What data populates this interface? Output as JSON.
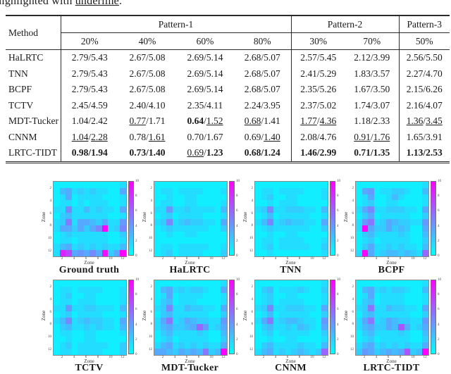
{
  "intro_text": {
    "prefix": "highlighted with ",
    "underlined": "underline",
    "suffix": "."
  },
  "table": {
    "method_header": "Method",
    "groups": [
      {
        "label": "Pattern-1",
        "span": 4
      },
      {
        "label": "Pattern-2",
        "span": 2
      },
      {
        "label": "Pattern-3",
        "span": 1
      }
    ],
    "sub_headers": [
      "20%",
      "40%",
      "60%",
      "80%",
      "30%",
      "70%",
      "50%"
    ],
    "rows": [
      {
        "method": "HaLRTC",
        "cells": [
          [
            "2.79",
            "n",
            "5.43",
            "n"
          ],
          [
            "2.67",
            "n",
            "5.08",
            "n"
          ],
          [
            "2.69",
            "n",
            "5.14",
            "n"
          ],
          [
            "2.68",
            "n",
            "5.07",
            "n"
          ],
          [
            "2.57",
            "n",
            "5.45",
            "n"
          ],
          [
            "2.12",
            "n",
            "3.99",
            "n"
          ],
          [
            "2.56",
            "n",
            "5.50",
            "n"
          ]
        ]
      },
      {
        "method": "TNN",
        "cells": [
          [
            "2.79",
            "n",
            "5.43",
            "n"
          ],
          [
            "2.67",
            "n",
            "5.08",
            "n"
          ],
          [
            "2.69",
            "n",
            "5.14",
            "n"
          ],
          [
            "2.68",
            "n",
            "5.07",
            "n"
          ],
          [
            "2.41",
            "n",
            "5.29",
            "n"
          ],
          [
            "1.83",
            "n",
            "3.57",
            "n"
          ],
          [
            "2.27",
            "n",
            "4.70",
            "n"
          ]
        ]
      },
      {
        "method": "BCPF",
        "cells": [
          [
            "2.79",
            "n",
            "5.43",
            "n"
          ],
          [
            "2.67",
            "n",
            "5.08",
            "n"
          ],
          [
            "2.69",
            "n",
            "5.14",
            "n"
          ],
          [
            "2.68",
            "n",
            "5.07",
            "n"
          ],
          [
            "2.35",
            "n",
            "5.26",
            "n"
          ],
          [
            "1.67",
            "n",
            "3.50",
            "n"
          ],
          [
            "2.15",
            "n",
            "6.26",
            "n"
          ]
        ]
      },
      {
        "method": "TCTV",
        "cells": [
          [
            "2.45",
            "n",
            "4.59",
            "n"
          ],
          [
            "2.40",
            "n",
            "4.10",
            "n"
          ],
          [
            "2.35",
            "n",
            "4.11",
            "n"
          ],
          [
            "2.24",
            "n",
            "3.95",
            "n"
          ],
          [
            "2.37",
            "n",
            "5.02",
            "n"
          ],
          [
            "1.74",
            "n",
            "3.07",
            "n"
          ],
          [
            "2.16",
            "n",
            "4.07",
            "n"
          ]
        ]
      },
      {
        "method": "MDT-Tucker",
        "cells": [
          [
            "1.04",
            "n",
            "2.42",
            "n"
          ],
          [
            "0.77",
            "u",
            "1.71",
            "n"
          ],
          [
            "0.64",
            "b",
            "1.52",
            "u"
          ],
          [
            "0.68",
            "u",
            "1.41",
            "n"
          ],
          [
            "1.77",
            "u",
            "4.36",
            "u"
          ],
          [
            "1.18",
            "n",
            "2.33",
            "n"
          ],
          [
            "1.36",
            "u",
            "3.45",
            "u"
          ]
        ]
      },
      {
        "method": "CNNM",
        "cells": [
          [
            "1.04",
            "u",
            "2.28",
            "u"
          ],
          [
            "0.78",
            "n",
            "1.61",
            "u"
          ],
          [
            "0.70",
            "n",
            "1.67",
            "n"
          ],
          [
            "0.69",
            "n",
            "1.40",
            "u"
          ],
          [
            "2.08",
            "n",
            "4.76",
            "n"
          ],
          [
            "0.91",
            "u",
            "1.76",
            "u"
          ],
          [
            "1.65",
            "n",
            "3.91",
            "n"
          ]
        ]
      },
      {
        "method": "LRTC-TIDT",
        "cells": [
          [
            "0.98",
            "b",
            "1.94",
            "b"
          ],
          [
            "0.73",
            "b",
            "1.40",
            "b"
          ],
          [
            "0.69",
            "u",
            "1.23",
            "b"
          ],
          [
            "0.68",
            "b",
            "1.24",
            "b"
          ],
          [
            "1.46",
            "b",
            "2.99",
            "b"
          ],
          [
            "0.71",
            "b",
            "1.35",
            "b"
          ],
          [
            "1.13",
            "b",
            "2.53",
            "b"
          ]
        ]
      }
    ]
  },
  "figure": {
    "x_label": "Zone",
    "y_label": "Zone",
    "x_ticks": [
      "2",
      "4",
      "6",
      "8",
      "10",
      "12"
    ],
    "y_ticks": [
      "2",
      "4",
      "6",
      "8",
      "10",
      "12"
    ],
    "colorbar_ticks": [
      "10",
      "8",
      "6",
      "4",
      "2",
      "0"
    ],
    "colormap": {
      "low": "#00ffff",
      "high": "#ff00ff"
    },
    "panels": [
      {
        "caption": "Ground truth",
        "cells": [
          "111111111112",
          "145232322115",
          "125122221112",
          "122121222112",
          "227224232215",
          "134222222112",
          "238255435226",
          "25535357f237",
          "123222222113",
          "122122222112",
          "245232323224",
          "2db56575e35f"
        ]
      },
      {
        "caption": "HaLRTC",
        "cells": [
          "111111111111",
          "122122221112",
          "112112211111",
          "122112211112",
          "226223222214",
          "123122221112",
          "237234332215",
          "123222222113",
          "112112211111",
          "111111111111",
          "122122222112",
          "123122221113"
        ]
      },
      {
        "caption": "TNN",
        "cells": [
          "111111111111",
          "122122221112",
          "123112211112",
          "112122211111",
          "237223332214",
          "124122222112",
          "247234332215",
          "123222222113",
          "112112211111",
          "122122221112",
          "123122222113",
          "112111111112"
        ]
      },
      {
        "caption": "BCPF",
        "cells": [
          "111111111112",
          "156122332114",
          "125112421112",
          "123112211112",
          "257223332215",
          "135122222113",
          "268235433226",
          "2f5335343115",
          "134222232114",
          "123122222113",
          "135223232214",
          "2f5234434329"
        ]
      },
      {
        "caption": "TCTV",
        "cells": [
          "111111111111",
          "122122221112",
          "123112211112",
          "122122211112",
          "226223322214",
          "123122221112",
          "247234332215",
          "134223232214",
          "122112211112",
          "112112211111",
          "123122222113",
          "122122221113"
        ]
      },
      {
        "caption": "MDT-Tucker",
        "cells": [
          "111111111112",
          "145232332115",
          "125122221112",
          "134122211112",
          "237224332215",
          "134222222113",
          "258235433226",
          "245334596235",
          "134222232114",
          "123122222113",
          "245232323225",
          "55435454834f"
        ]
      },
      {
        "caption": "CNNM",
        "cells": [
          "111111111112",
          "134122232113",
          "123112211112",
          "123122221112",
          "237223332215",
          "124122222113",
          "258234432216",
          "134223243215",
          "123122222113",
          "112112211112",
          "134222232214",
          "245232343239"
        ]
      },
      {
        "caption": "LRTC-TIDT",
        "cells": [
          "111111111112",
          "145232332114",
          "125122221112",
          "134122221112",
          "238224332215",
          "134222222113",
          "258235433226",
          "2453354a5235",
          "134222232114",
          "123122222113",
          "245232323225",
          "36534545a34f"
        ]
      }
    ]
  }
}
